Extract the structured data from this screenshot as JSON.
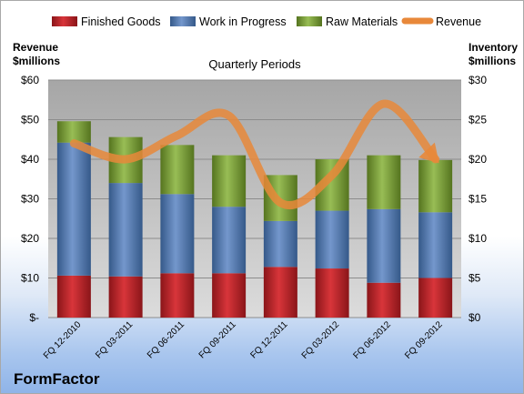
{
  "brand": "FormFactor",
  "chart_data": {
    "type": "bar",
    "stacked": true,
    "title": "Quarterly Periods",
    "ylabel_left": [
      "Revenue",
      "$millions"
    ],
    "ylabel_right": [
      "Inventory",
      "$millions"
    ],
    "ylim_left": [
      0,
      60
    ],
    "ylim_right": [
      0,
      30
    ],
    "left_ticks": [
      "$-",
      "$10",
      "$20",
      "$30",
      "$40",
      "$50",
      "$60"
    ],
    "right_ticks": [
      "$0",
      "$5",
      "$10",
      "$15",
      "$20",
      "$25",
      "$30"
    ],
    "categories": [
      "FQ 12-2010",
      "FQ 03-2011",
      "FQ 06-2011",
      "FQ 09-2011",
      "FQ 12-2011",
      "FQ 03-2012",
      "FQ 06-2012",
      "FQ 09-2012"
    ],
    "series": [
      {
        "name": "Finished Goods",
        "axis": "right",
        "color": "#c0262b",
        "values": [
          5.3,
          5.2,
          5.6,
          5.6,
          6.4,
          6.2,
          4.4,
          5.0
        ]
      },
      {
        "name": "Work in Progress",
        "axis": "right",
        "color": "#4f78b5",
        "values": [
          16.8,
          11.8,
          10.0,
          8.4,
          5.8,
          7.3,
          9.3,
          8.3
        ]
      },
      {
        "name": "Raw Materials",
        "axis": "right",
        "color": "#7ea33b",
        "values": [
          2.7,
          5.8,
          6.2,
          6.5,
          5.8,
          6.5,
          6.8,
          6.6
        ]
      },
      {
        "name": "Revenue",
        "axis": "left",
        "type": "line",
        "color": "#e8883a",
        "values": [
          44,
          40,
          46,
          51,
          29,
          36,
          54,
          40
        ]
      }
    ],
    "legend_position": "top",
    "grid": true
  }
}
